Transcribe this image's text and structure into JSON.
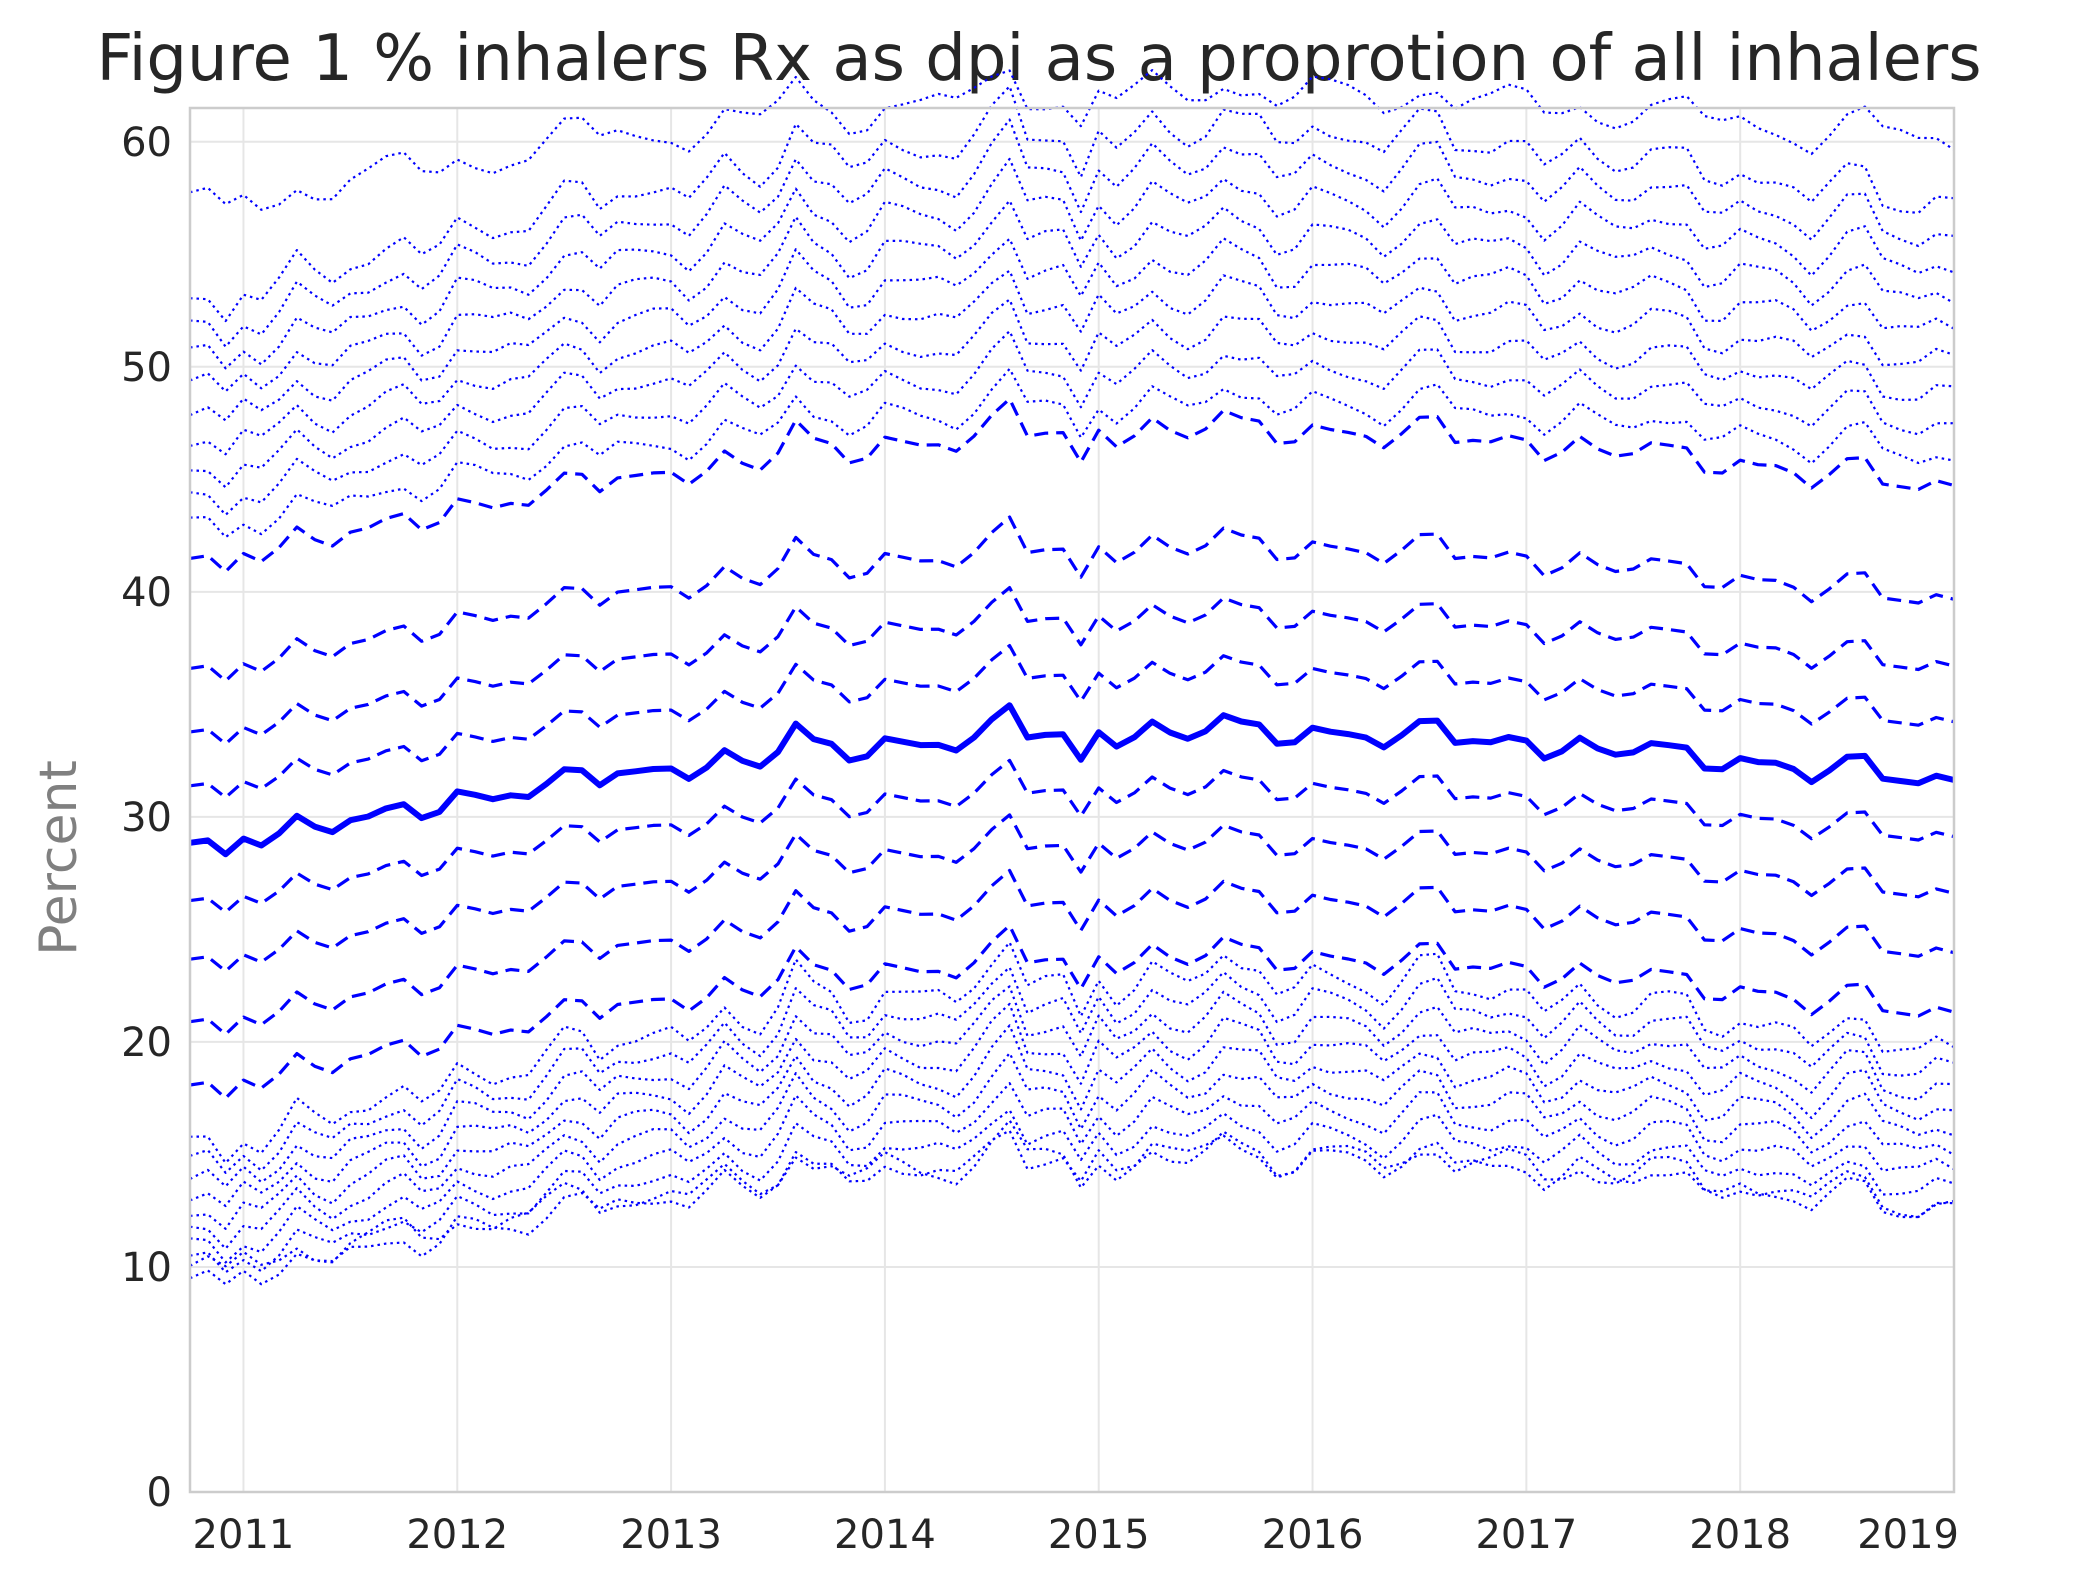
{
  "chart_data": {
    "type": "line",
    "title": "Figure 1 % inhalers Rx as dpi as a proprotion of all inhalers",
    "xlabel": "",
    "ylabel": "Percent",
    "x": [
      "2010-10",
      "2010-11",
      "2010-12",
      "2011-01",
      "2011-02",
      "2011-03",
      "2011-04",
      "2011-05",
      "2011-06",
      "2011-07",
      "2011-08",
      "2011-09",
      "2011-10",
      "2011-11",
      "2011-12",
      "2012-01",
      "2012-02",
      "2012-03",
      "2012-04",
      "2012-05",
      "2012-06",
      "2012-07",
      "2012-08",
      "2012-09",
      "2012-10",
      "2012-11",
      "2012-12",
      "2013-01",
      "2013-02",
      "2013-03",
      "2013-04",
      "2013-05",
      "2013-06",
      "2013-07",
      "2013-08",
      "2013-09",
      "2013-10",
      "2013-11",
      "2013-12",
      "2014-01",
      "2014-02",
      "2014-03",
      "2014-04",
      "2014-05",
      "2014-06",
      "2014-07",
      "2014-08",
      "2014-09",
      "2014-10",
      "2014-11",
      "2014-12",
      "2015-01",
      "2015-02",
      "2015-03",
      "2015-04",
      "2015-05",
      "2015-06",
      "2015-07",
      "2015-08",
      "2015-09",
      "2015-10",
      "2015-11",
      "2015-12",
      "2016-01",
      "2016-02",
      "2016-03",
      "2016-04",
      "2016-05",
      "2016-06",
      "2016-07",
      "2016-08",
      "2016-09",
      "2016-10",
      "2016-11",
      "2016-12",
      "2017-01",
      "2017-02",
      "2017-03",
      "2017-04",
      "2017-05",
      "2017-06",
      "2017-07",
      "2017-08",
      "2017-09",
      "2017-10",
      "2017-11",
      "2017-12",
      "2018-01",
      "2018-02",
      "2018-03",
      "2018-04",
      "2018-05",
      "2018-06",
      "2018-07",
      "2018-08",
      "2018-09",
      "2018-10",
      "2018-11",
      "2018-12",
      "2019-01"
    ],
    "xlim": [
      "2010-10",
      "2019-01"
    ],
    "ylim": [
      0,
      61.5
    ],
    "y_ticks": [
      "0",
      "10",
      "20",
      "30",
      "40",
      "50",
      "60"
    ],
    "x_ticks": [
      "2011",
      "2012",
      "2013",
      "2014",
      "2015",
      "2016",
      "2017",
      "2018",
      "2019"
    ],
    "x_tick_dates": [
      "2011-01",
      "2012-01",
      "2013-01",
      "2014-01",
      "2015-01",
      "2016-01",
      "2017-01",
      "2018-01",
      "2019-01"
    ],
    "grid": true,
    "line_color": "#0000ff",
    "median": {
      "y0": 28.6,
      "y1": 31.7,
      "bumps": {
        "2012-08": 0.8,
        "2013-08": 1.5,
        "2014-08": 1.7,
        "2015-08": 1.0,
        "2016-08": 1.0,
        "2017-08": 0.8,
        "2018-08": 1.0
      },
      "dips": {
        "2010-12": -0.6,
        "2014-12": -1.3
      }
    },
    "deciles": [
      {
        "p": 10,
        "offset": -10.2,
        "scale": 1.16
      },
      {
        "p": 20,
        "offset": -7.6,
        "scale": 1.1
      },
      {
        "p": 30,
        "offset": -5.0,
        "scale": 1.05
      },
      {
        "p": 40,
        "offset": -2.5,
        "scale": 1.02
      },
      {
        "p": 60,
        "offset": 2.6,
        "scale": 1.02
      },
      {
        "p": 70,
        "offset": 5.1,
        "scale": 1.05
      },
      {
        "p": 80,
        "offset": 8.1,
        "scale": 1.1
      },
      {
        "p": 90,
        "offset": 13.2,
        "scale": 1.16
      }
    ],
    "percentiles_low": {
      "bottom_offset": -19.0,
      "top_offset": -11.6,
      "count": 9
    },
    "percentiles_high": {
      "bottom_offset": 14.5,
      "top_offset": 26.0,
      "count": 9
    },
    "extreme_low": {
      "p": 1,
      "offset": -18.8
    },
    "extreme_high": {
      "p": 99,
      "offset": 28.4
    }
  }
}
